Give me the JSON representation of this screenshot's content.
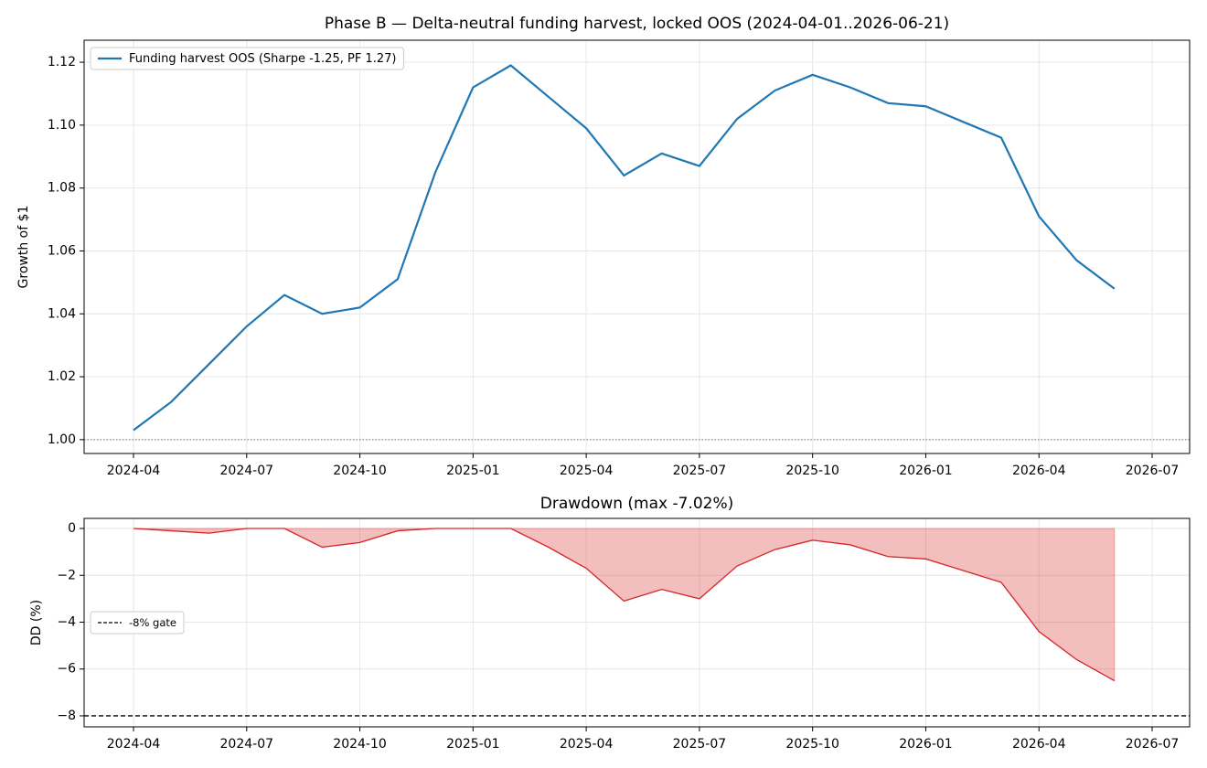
{
  "chart_data": [
    {
      "type": "line",
      "title": "Phase B — Delta-neutral funding harvest, locked OOS (2024-04-01..2026-06-21)",
      "ylabel": "Growth of $1",
      "x": [
        "2024-04",
        "2024-05",
        "2024-06",
        "2024-07",
        "2024-08",
        "2024-09",
        "2024-10",
        "2024-11",
        "2024-12",
        "2025-01",
        "2025-02",
        "2025-03",
        "2025-04",
        "2025-05",
        "2025-06",
        "2025-07",
        "2025-08",
        "2025-09",
        "2025-10",
        "2025-11",
        "2025-12",
        "2026-01",
        "2026-02",
        "2026-03",
        "2026-04",
        "2026-05",
        "2026-06"
      ],
      "series": [
        {
          "name": "Funding harvest OOS (Sharpe -1.25, PF 1.27)",
          "color": "#1f77b4",
          "values": [
            1.003,
            1.012,
            1.024,
            1.036,
            1.046,
            1.04,
            1.042,
            1.051,
            1.085,
            1.112,
            1.119,
            1.109,
            1.099,
            1.084,
            1.091,
            1.087,
            1.102,
            1.111,
            1.116,
            1.112,
            1.107,
            1.106,
            1.101,
            1.096,
            1.071,
            1.057,
            1.048
          ]
        }
      ],
      "ylim": [
        0.9956,
        1.127
      ],
      "yticks": [
        {
          "value": 1.0,
          "label": "1.00"
        },
        {
          "value": 1.02,
          "label": "1.02"
        },
        {
          "value": 1.04,
          "label": "1.04"
        },
        {
          "value": 1.06,
          "label": "1.06"
        },
        {
          "value": 1.08,
          "label": "1.08"
        },
        {
          "value": 1.1,
          "label": "1.10"
        },
        {
          "value": 1.12,
          "label": "1.12"
        }
      ],
      "xticks": [
        "2024-04",
        "2024-07",
        "2024-10",
        "2025-01",
        "2025-04",
        "2025-07",
        "2025-10",
        "2026-01",
        "2026-04",
        "2026-07"
      ],
      "grid": true,
      "legend": "upper left",
      "hline": 1.0
    },
    {
      "type": "area",
      "title": "Drawdown (max -7.02%)",
      "ylabel": "DD (%)",
      "x": [
        "2024-04",
        "2024-05",
        "2024-06",
        "2024-07",
        "2024-08",
        "2024-09",
        "2024-10",
        "2024-11",
        "2024-12",
        "2025-01",
        "2025-02",
        "2025-03",
        "2025-04",
        "2025-05",
        "2025-06",
        "2025-07",
        "2025-08",
        "2025-09",
        "2025-10",
        "2025-11",
        "2025-12",
        "2026-01",
        "2026-02",
        "2026-03",
        "2026-04",
        "2026-05",
        "2026-06"
      ],
      "series": [
        {
          "color": "#d62728",
          "values": [
            0,
            -0.1,
            -0.2,
            0,
            0,
            -0.8,
            -0.6,
            -0.1,
            0,
            0,
            0,
            -0.8,
            -1.7,
            -3.1,
            -2.6,
            -3.0,
            -1.6,
            -0.9,
            -0.5,
            -0.7,
            -1.2,
            -1.3,
            -1.8,
            -2.3,
            -4.4,
            -5.6,
            -6.5
          ]
        }
      ],
      "ylim": [
        -8.47,
        0.43
      ],
      "yticks": [
        0,
        {
          "value": -2,
          "label": "−2"
        },
        {
          "value": -4,
          "label": "−4"
        },
        {
          "value": -6,
          "label": "−6"
        },
        {
          "value": -8,
          "label": "−8"
        }
      ],
      "xticks": [
        "2024-04",
        "2024-07",
        "2024-10",
        "2025-01",
        "2025-04",
        "2025-07",
        "2025-10",
        "2026-01",
        "2026-04",
        "2026-07"
      ],
      "grid": true,
      "legend": "center left",
      "gate": {
        "value": -8,
        "label": "-8% gate",
        "color": "#000000"
      }
    }
  ]
}
